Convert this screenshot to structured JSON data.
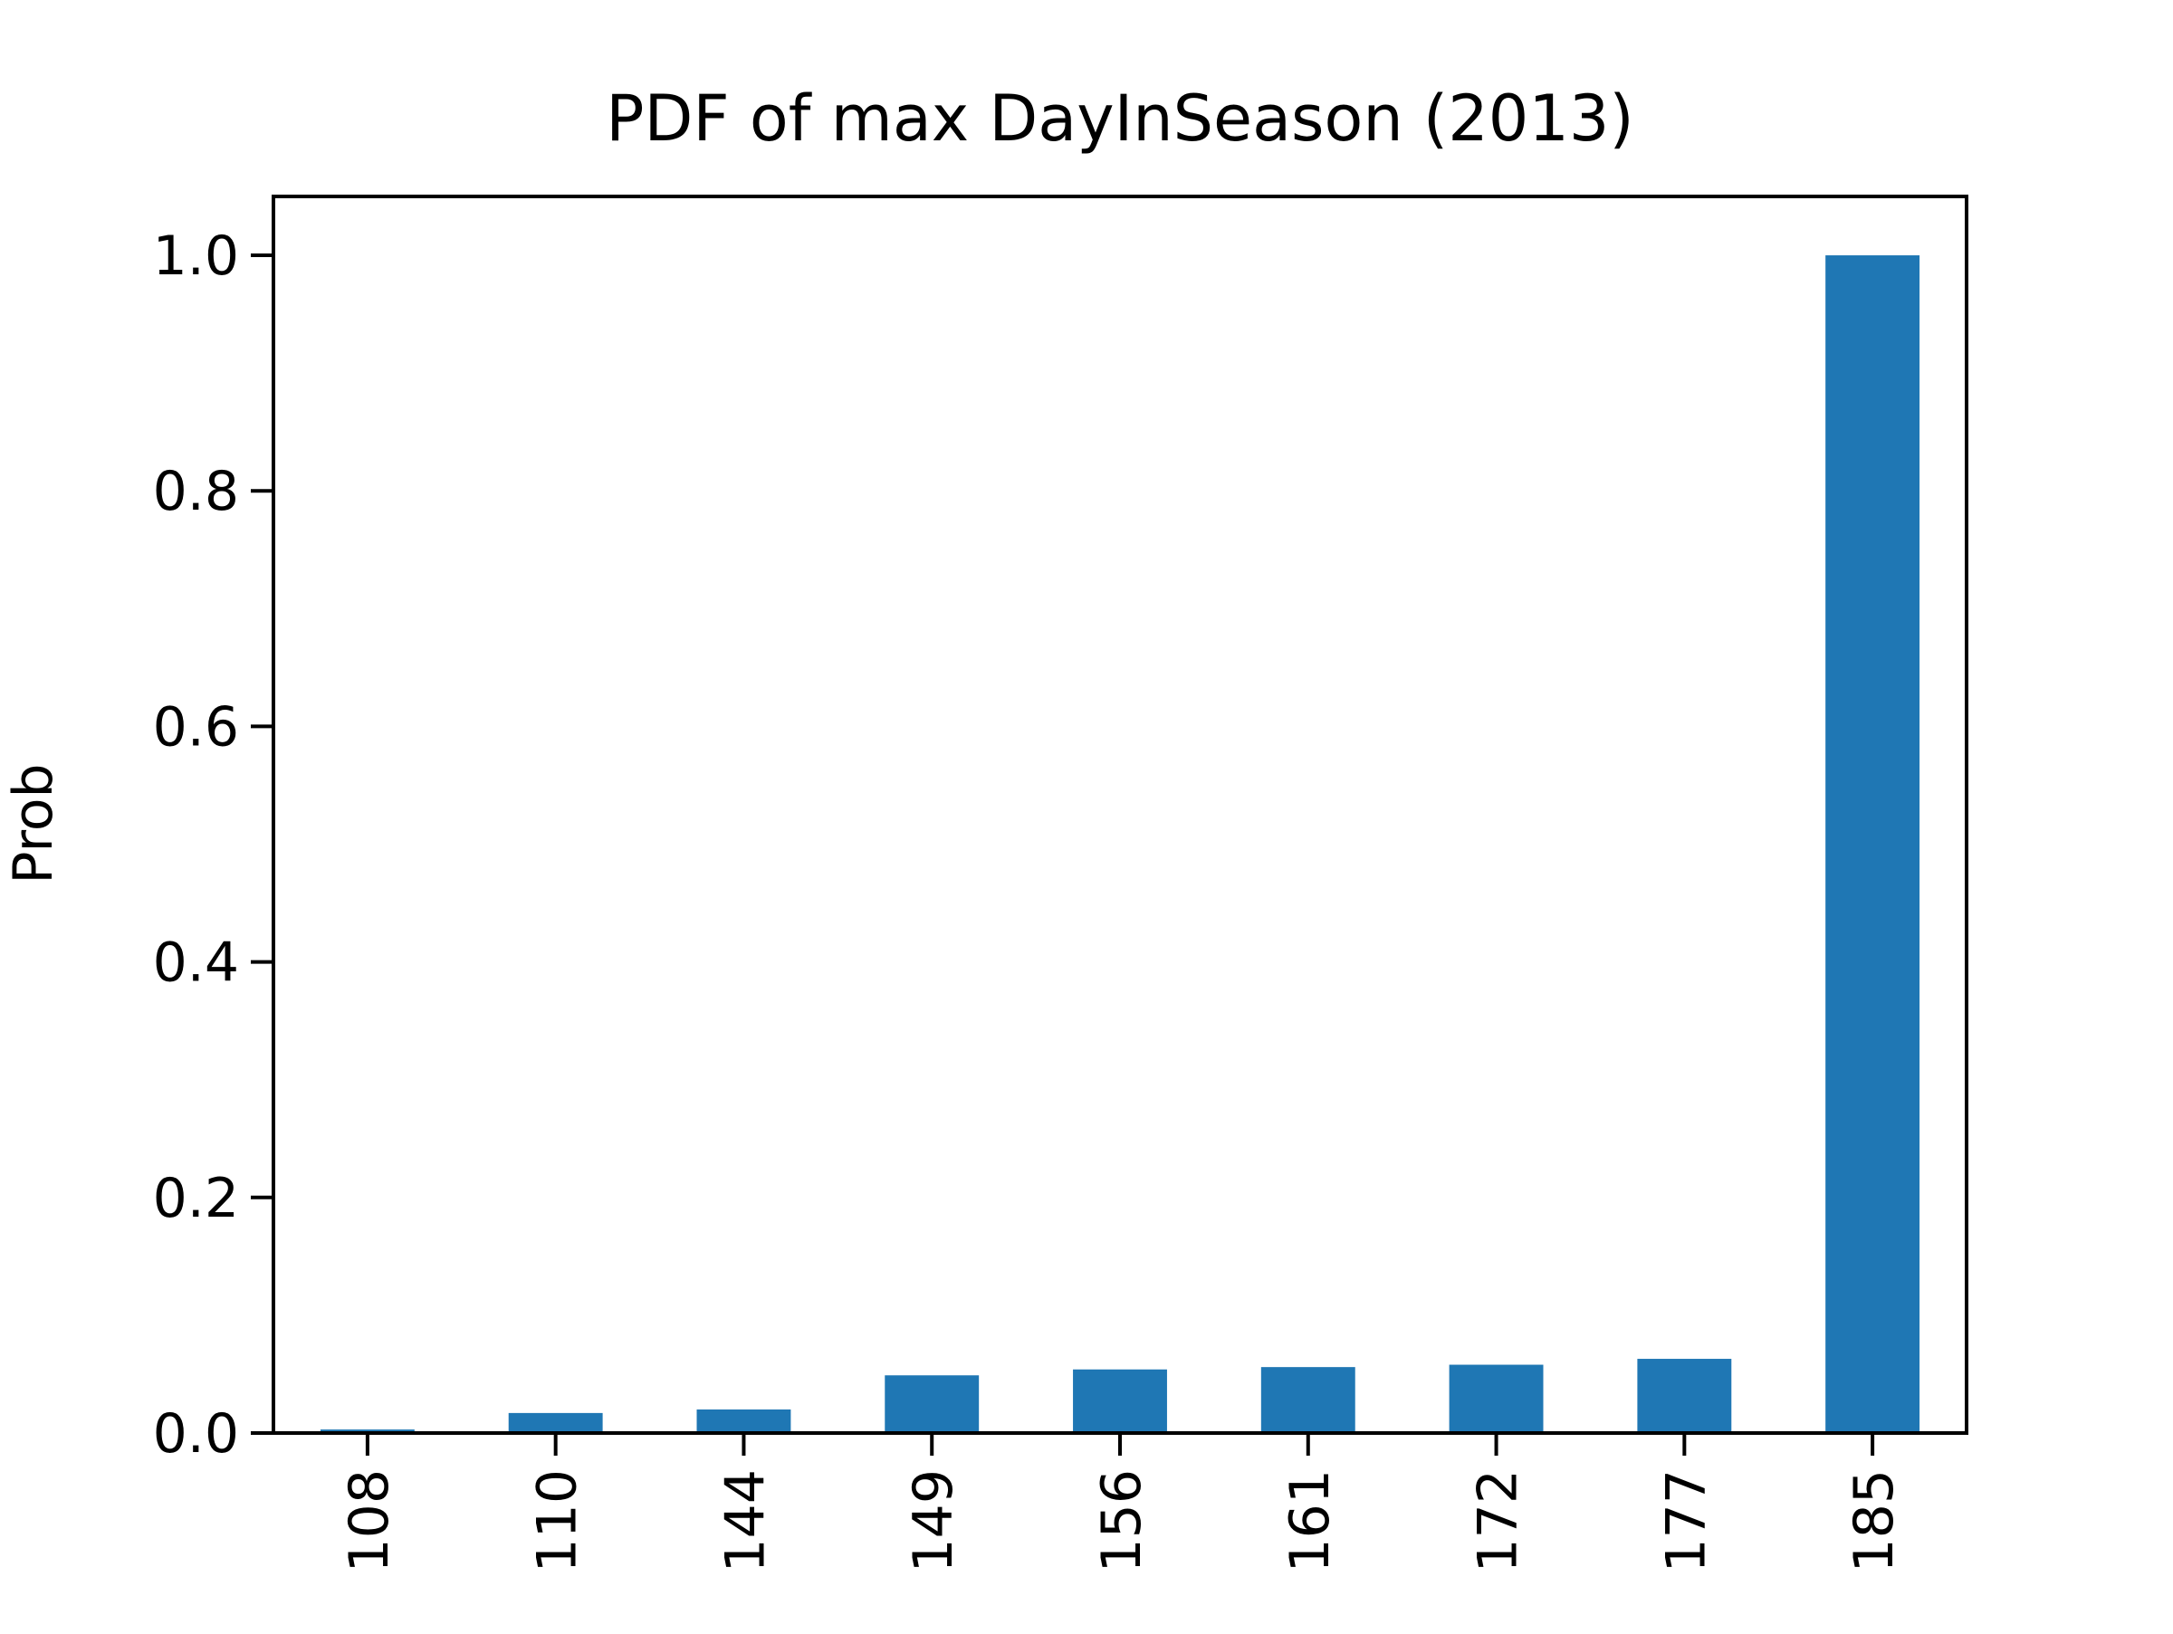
{
  "chart_data": {
    "type": "bar",
    "title": "PDF of max DayInSeason (2013)",
    "xlabel": "",
    "ylabel": "Prob",
    "categories": [
      "108",
      "110",
      "144",
      "149",
      "156",
      "161",
      "172",
      "177",
      "185"
    ],
    "values": [
      0.003,
      0.017,
      0.02,
      0.049,
      0.054,
      0.056,
      0.058,
      0.063,
      1.0
    ],
    "ylim": [
      0,
      1.05
    ],
    "yticks": [
      "0.0",
      "0.2",
      "0.4",
      "0.6",
      "0.8",
      "1.0"
    ],
    "bar_color": "#1f77b4",
    "grid": false,
    "legend": "none"
  }
}
